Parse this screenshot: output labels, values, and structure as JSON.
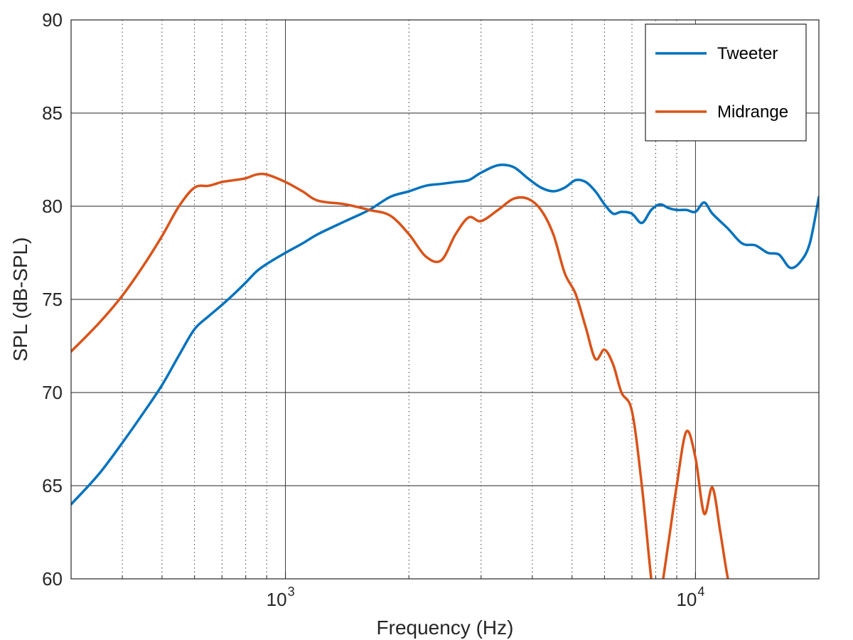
{
  "chart_data": {
    "type": "line",
    "title": "",
    "xlabel": "Frequency (Hz)",
    "ylabel": "SPL (dB-SPL)",
    "xscale": "log",
    "xlim": [
      300,
      20000
    ],
    "ylim": [
      60,
      90
    ],
    "grid": "major solid, minor dotted (x)",
    "legend_position": "top-right",
    "x_ticks": [
      {
        "value": 1000,
        "base": "10",
        "exp": "3"
      },
      {
        "value": 10000,
        "base": "10",
        "exp": "4"
      }
    ],
    "y_ticks": [
      "60",
      "65",
      "70",
      "75",
      "80",
      "85",
      "90"
    ],
    "colors": {
      "Tweeter": "#0072BD",
      "Midrange": "#D95319"
    },
    "series": [
      {
        "name": "Tweeter",
        "x": [
          300,
          350,
          400,
          450,
          500,
          550,
          600,
          650,
          700,
          750,
          800,
          850,
          900,
          1000,
          1100,
          1200,
          1400,
          1600,
          1800,
          2000,
          2200,
          2400,
          2600,
          2800,
          3000,
          3300,
          3600,
          3900,
          4200,
          4500,
          4800,
          5100,
          5400,
          5700,
          6000,
          6300,
          6600,
          7000,
          7400,
          7800,
          8200,
          8600,
          9000,
          9500,
          10000,
          10500,
          11000,
          12000,
          13000,
          14000,
          15000,
          16000,
          17000,
          18000,
          19000,
          20000
        ],
        "y": [
          64.0,
          65.6,
          67.3,
          68.9,
          70.4,
          72.0,
          73.4,
          74.1,
          74.7,
          75.3,
          75.9,
          76.5,
          76.9,
          77.5,
          78.0,
          78.5,
          79.2,
          79.8,
          80.5,
          80.8,
          81.1,
          81.2,
          81.3,
          81.4,
          81.8,
          82.2,
          82.1,
          81.5,
          81.0,
          80.8,
          81.0,
          81.4,
          81.3,
          80.8,
          80.1,
          79.6,
          79.7,
          79.6,
          79.1,
          79.8,
          80.1,
          79.9,
          79.8,
          79.8,
          79.7,
          80.2,
          79.6,
          78.8,
          78.0,
          77.9,
          77.5,
          77.4,
          76.7,
          77.0,
          78.0,
          80.5
        ]
      },
      {
        "name": "Midrange",
        "x": [
          300,
          350,
          400,
          450,
          500,
          550,
          600,
          650,
          700,
          750,
          800,
          850,
          900,
          1000,
          1100,
          1200,
          1400,
          1600,
          1800,
          2000,
          2200,
          2400,
          2600,
          2800,
          3000,
          3300,
          3600,
          3900,
          4200,
          4500,
          4800,
          5100,
          5400,
          5700,
          6000,
          6300,
          6600,
          7000,
          7400,
          7800,
          8000,
          8200,
          8600,
          9000,
          9500,
          10000,
          10500,
          11000,
          11500,
          12000,
          12500
        ],
        "y": [
          72.2,
          73.7,
          75.2,
          76.8,
          78.4,
          80.0,
          81.0,
          81.1,
          81.3,
          81.4,
          81.5,
          81.7,
          81.7,
          81.3,
          80.8,
          80.3,
          80.1,
          79.8,
          79.5,
          78.5,
          77.3,
          77.1,
          78.5,
          79.4,
          79.2,
          79.8,
          80.4,
          80.4,
          79.8,
          78.5,
          76.4,
          75.3,
          73.5,
          71.8,
          72.3,
          71.5,
          70.0,
          69.0,
          65.0,
          60.0,
          58.5,
          59.0,
          62.0,
          65.0,
          67.9,
          66.5,
          63.5,
          64.9,
          62.5,
          60.0,
          58.5
        ]
      }
    ]
  }
}
